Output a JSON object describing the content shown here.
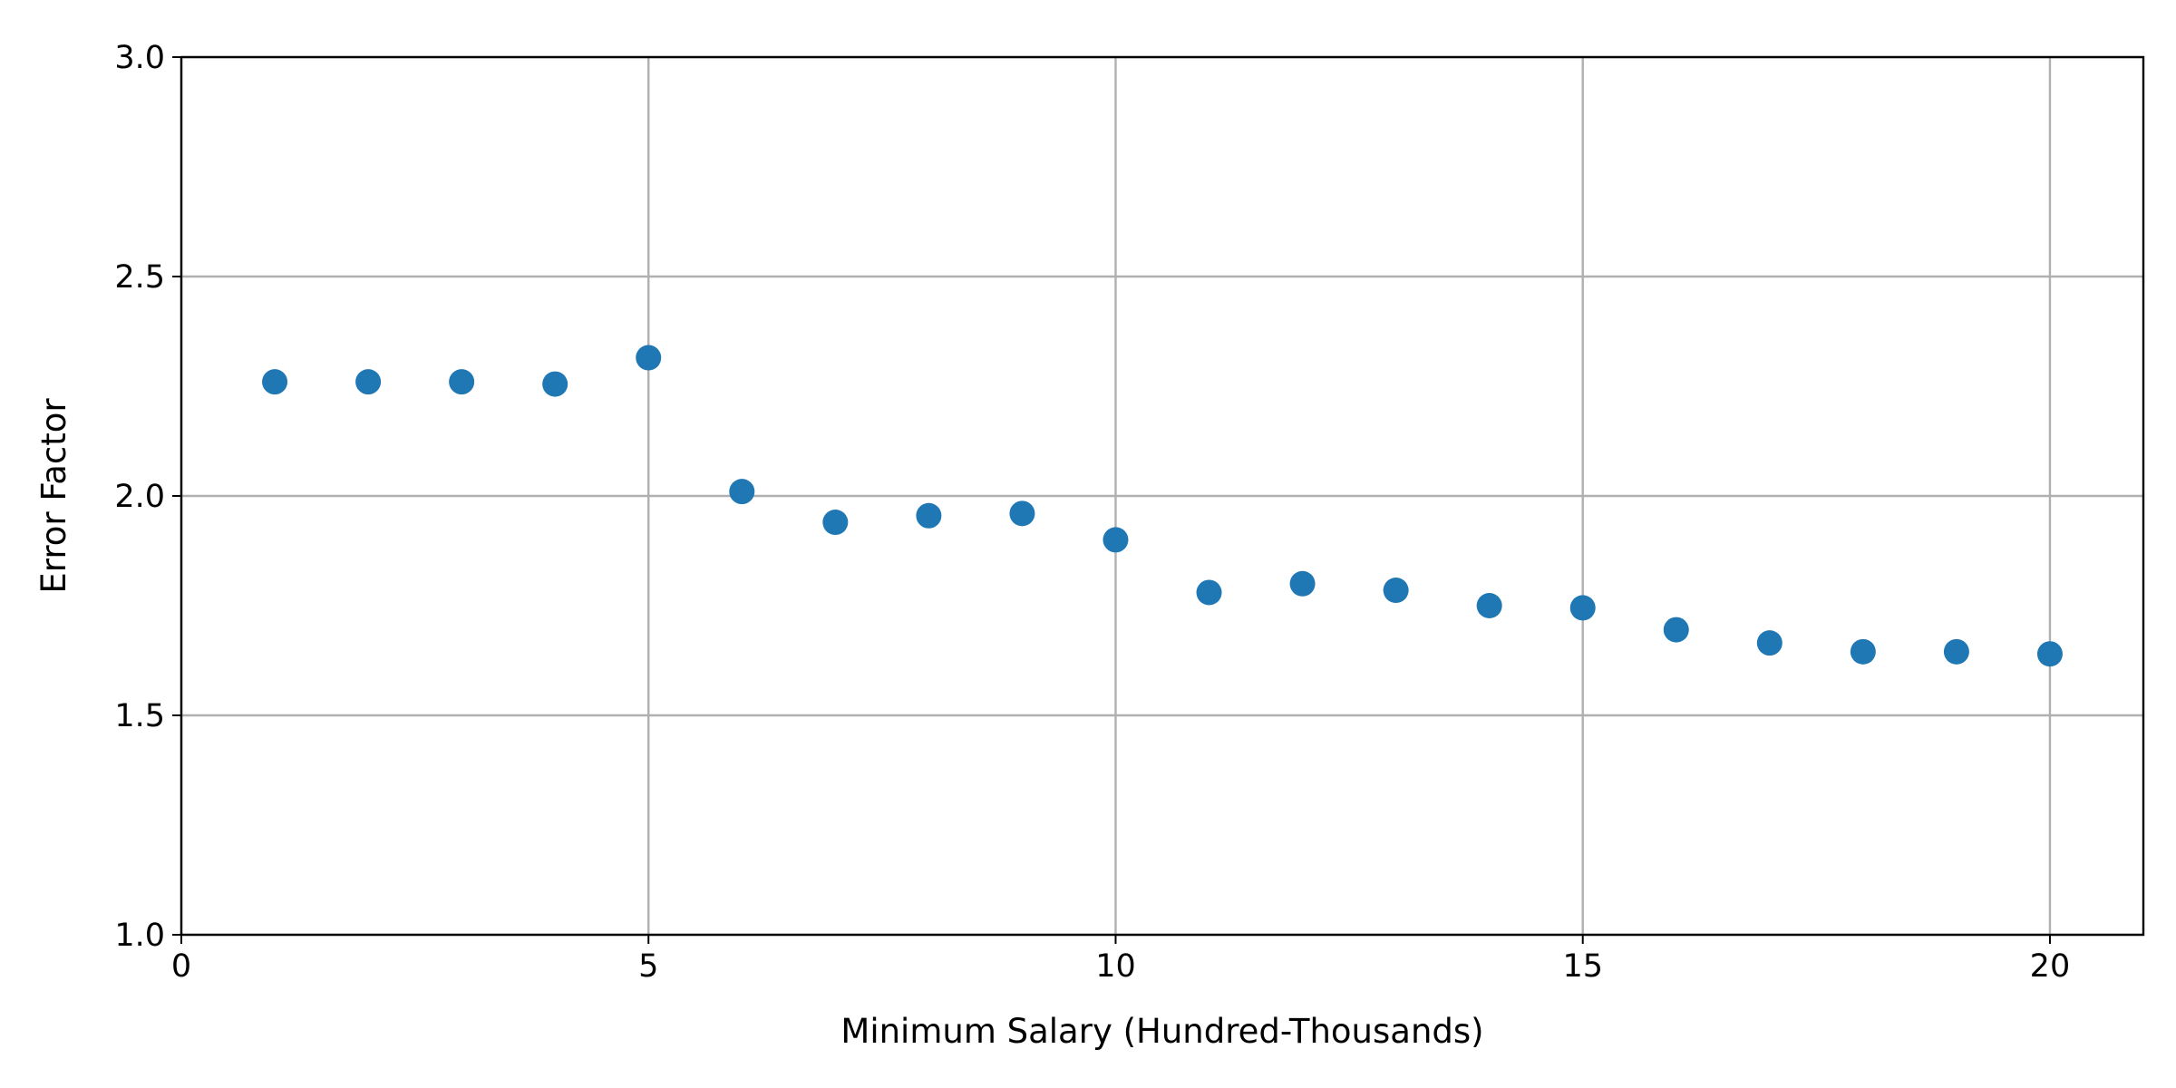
{
  "chart_data": {
    "type": "scatter",
    "title": "",
    "xlabel": "Minimum Salary (Hundred-Thousands)",
    "ylabel": "Error Factor",
    "xlim": [
      0,
      21
    ],
    "ylim": [
      1.0,
      3.0
    ],
    "x_ticks": [
      0,
      5,
      10,
      15,
      20
    ],
    "y_ticks": [
      1.0,
      1.5,
      2.0,
      2.5,
      3.0
    ],
    "x_tick_labels": [
      "0",
      "5",
      "10",
      "15",
      "20"
    ],
    "y_tick_labels": [
      "1.0",
      "1.5",
      "2.0",
      "2.5",
      "3.0"
    ],
    "grid": true,
    "legend": "none",
    "series": [
      {
        "color": "#1f77b4",
        "x": [
          1,
          2,
          3,
          4,
          5,
          6,
          7,
          8,
          9,
          10,
          11,
          12,
          13,
          14,
          15,
          16,
          17,
          18,
          19,
          20
        ],
        "y": [
          2.26,
          2.26,
          2.26,
          2.255,
          2.315,
          2.01,
          1.94,
          1.955,
          1.96,
          1.9,
          1.78,
          1.8,
          1.785,
          1.75,
          1.745,
          1.695,
          1.665,
          1.645,
          1.645,
          1.64
        ]
      }
    ],
    "colors": {
      "grid": "#b0b0b0",
      "axes": "#000000"
    }
  }
}
